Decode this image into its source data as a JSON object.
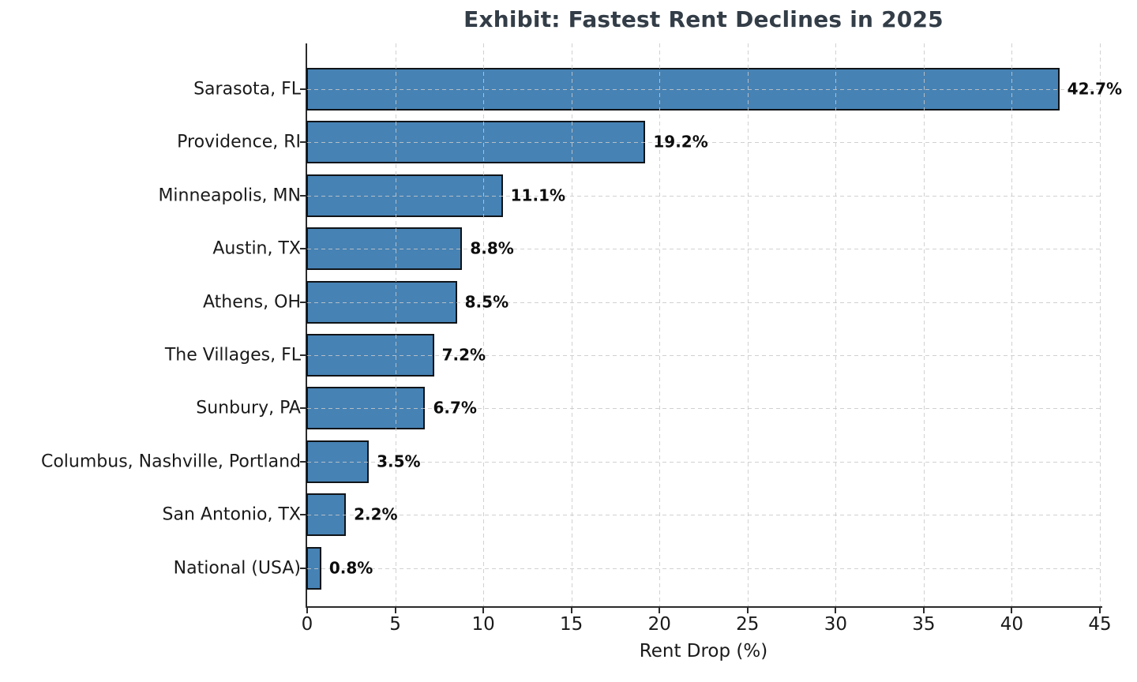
{
  "chart_data": {
    "type": "bar",
    "orientation": "horizontal",
    "title": "Exhibit: Fastest Rent Declines in 2025",
    "xlabel": "Rent Drop (%)",
    "categories": [
      "Sarasota, FL",
      "Providence, RI",
      "Minneapolis, MN",
      "Austin, TX",
      "Athens, OH",
      "The Villages, FL",
      "Sunbury, PA",
      "Columbus, Nashville, Portland",
      "San Antonio, TX",
      "National (USA)"
    ],
    "values": [
      42.7,
      19.2,
      11.1,
      8.8,
      8.5,
      7.2,
      6.7,
      3.5,
      2.2,
      0.8
    ],
    "value_labels": [
      "42.7%",
      "19.2%",
      "11.1%",
      "8.8%",
      "8.5%",
      "7.2%",
      "6.7%",
      "3.5%",
      "2.2%",
      "0.8%"
    ],
    "xlim": [
      0,
      45
    ],
    "xticks": [
      0,
      5,
      10,
      15,
      20,
      25,
      30,
      35,
      40,
      45
    ],
    "xtick_labels": [
      "0",
      "5",
      "10",
      "15",
      "20",
      "25",
      "30",
      "35",
      "40",
      "45"
    ],
    "grid": "dashed",
    "legend": "none",
    "colors": {
      "bar_fill": "#4682B4",
      "bar_edge": "#101418",
      "grid": "#c9c9c9",
      "title": "#333d47",
      "text": "#1a1a1a",
      "spine": "#2b2b2b"
    }
  }
}
